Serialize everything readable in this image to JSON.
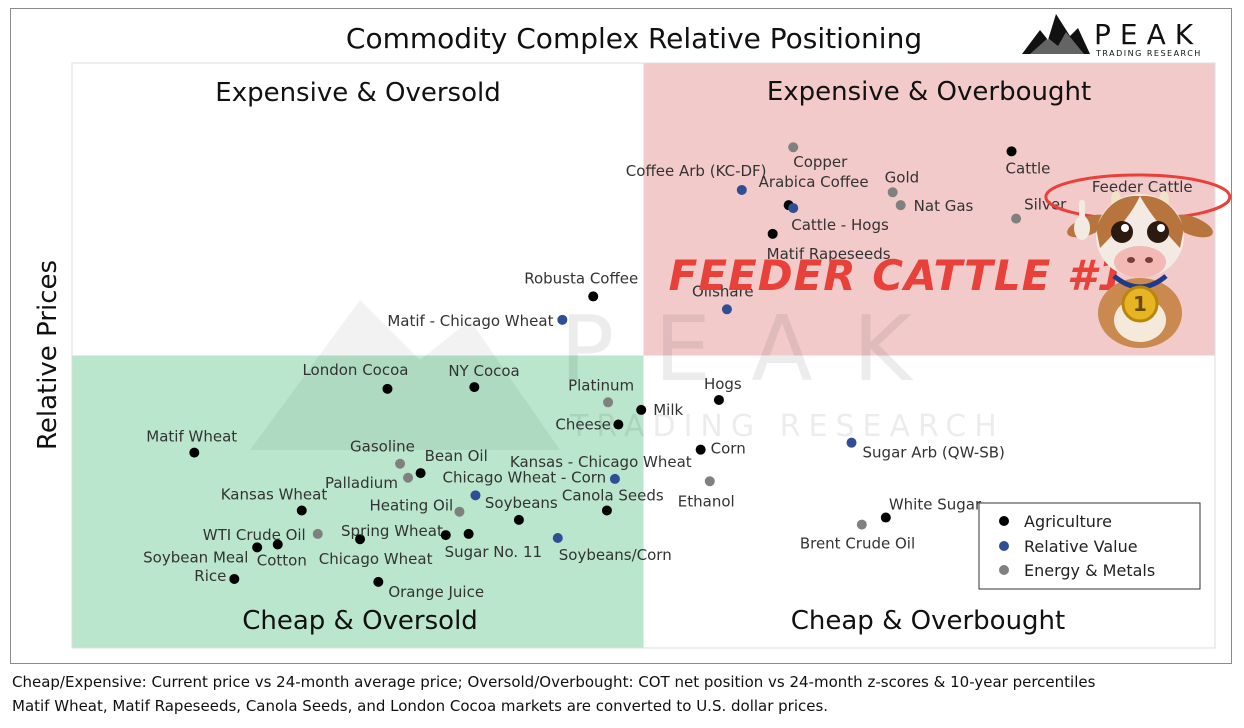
{
  "chart_data": {
    "type": "scatter",
    "title": "Commodity Complex Relative Positioning",
    "ylabel": "Relative Prices",
    "xlabel": "",
    "xlim": [
      0,
      100
    ],
    "ylim": [
      0,
      100
    ],
    "quadrants": {
      "top_left": "Expensive & Oversold",
      "top_right": "Expensive & Overbought",
      "bottom_left": "Cheap & Oversold",
      "bottom_right": "Cheap & Overbought"
    },
    "quadrant_colors": {
      "top_right": "#f2caca",
      "bottom_left": "#b9e6cd"
    },
    "series_colors": {
      "Agriculture": "#000000",
      "Relative Value": "#2e4f96",
      "Energy & Metals": "#808080"
    },
    "legend": {
      "position": "bottom-right",
      "entries": [
        "Agriculture",
        "Relative Value",
        "Energy & Metals"
      ]
    },
    "points": [
      {
        "name": "Copper",
        "x": 63.1,
        "y": 85.6,
        "series": "Energy & Metals"
      },
      {
        "name": "Cattle",
        "x": 82.2,
        "y": 84.9,
        "series": "Agriculture"
      },
      {
        "name": "Coffee Arb (KC-DF)",
        "x": 58.6,
        "y": 78.3,
        "series": "Relative Value"
      },
      {
        "name": "Gold",
        "x": 71.8,
        "y": 77.9,
        "series": "Energy & Metals"
      },
      {
        "name": "Arabica Coffee",
        "x": 62.7,
        "y": 75.7,
        "series": "Agriculture"
      },
      {
        "name": "Feeder Cattle",
        "x": 91.5,
        "y": 75.9,
        "series": "Agriculture"
      },
      {
        "name": "Cattle - Hogs",
        "x": 63.1,
        "y": 75.2,
        "series": "Relative Value"
      },
      {
        "name": "Nat Gas",
        "x": 72.5,
        "y": 75.7,
        "series": "Energy & Metals"
      },
      {
        "name": "Silver",
        "x": 82.6,
        "y": 73.4,
        "series": "Energy & Metals"
      },
      {
        "name": "Matif Rapeseeds",
        "x": 61.3,
        "y": 70.8,
        "series": "Agriculture"
      },
      {
        "name": "Robusta Coffee",
        "x": 45.6,
        "y": 60.1,
        "series": "Agriculture"
      },
      {
        "name": "Matif - Chicago Wheat",
        "x": 42.9,
        "y": 56.1,
        "series": "Relative Value"
      },
      {
        "name": "Oilshare",
        "x": 57.3,
        "y": 57.9,
        "series": "Relative Value"
      },
      {
        "name": "London Cocoa",
        "x": 27.6,
        "y": 44.3,
        "series": "Agriculture"
      },
      {
        "name": "NY Cocoa",
        "x": 35.2,
        "y": 44.6,
        "series": "Agriculture"
      },
      {
        "name": "Platinum",
        "x": 46.9,
        "y": 42.0,
        "series": "Energy & Metals"
      },
      {
        "name": "Milk",
        "x": 49.8,
        "y": 40.7,
        "series": "Agriculture"
      },
      {
        "name": "Hogs",
        "x": 56.6,
        "y": 42.4,
        "series": "Agriculture"
      },
      {
        "name": "Cheese",
        "x": 47.8,
        "y": 38.2,
        "series": "Agriculture"
      },
      {
        "name": "Matif Wheat",
        "x": 10.7,
        "y": 33.4,
        "series": "Agriculture"
      },
      {
        "name": "Corn",
        "x": 55.0,
        "y": 33.9,
        "series": "Agriculture"
      },
      {
        "name": "Sugar Arb (QW-SB)",
        "x": 68.2,
        "y": 35.1,
        "series": "Relative Value"
      },
      {
        "name": "Gasoline",
        "x": 28.7,
        "y": 31.5,
        "series": "Energy & Metals"
      },
      {
        "name": "Bean Oil",
        "x": 30.5,
        "y": 29.9,
        "series": "Agriculture"
      },
      {
        "name": "Palladium",
        "x": 29.4,
        "y": 29.1,
        "series": "Energy & Metals"
      },
      {
        "name": "Kansas - Chicago Wheat",
        "x": 47.5,
        "y": 28.9,
        "series": "Relative Value"
      },
      {
        "name": "Ethanol",
        "x": 55.8,
        "y": 28.5,
        "series": "Energy & Metals"
      },
      {
        "name": "Chicago Wheat - Corn",
        "x": 35.3,
        "y": 26.1,
        "series": "Relative Value"
      },
      {
        "name": "Heating Oil",
        "x": 33.9,
        "y": 23.3,
        "series": "Energy & Metals"
      },
      {
        "name": "Soybeans",
        "x": 39.1,
        "y": 21.9,
        "series": "Agriculture"
      },
      {
        "name": "Canola Seeds",
        "x": 46.8,
        "y": 23.5,
        "series": "Agriculture"
      },
      {
        "name": "White Sugar",
        "x": 71.2,
        "y": 22.3,
        "series": "Agriculture"
      },
      {
        "name": "Kansas Wheat",
        "x": 20.1,
        "y": 23.5,
        "series": "Agriculture"
      },
      {
        "name": "Brent Crude Oil",
        "x": 69.1,
        "y": 21.1,
        "series": "Energy & Metals"
      },
      {
        "name": "WTI Crude Oil",
        "x": 21.5,
        "y": 19.5,
        "series": "Energy & Metals"
      },
      {
        "name": "Spring Wheat",
        "x": 25.2,
        "y": 18.6,
        "series": "Agriculture"
      },
      {
        "name": "Chicago Wheat",
        "x": 32.7,
        "y": 19.3,
        "series": "Agriculture"
      },
      {
        "name": "Sugar No. 11",
        "x": 34.7,
        "y": 19.5,
        "series": "Agriculture"
      },
      {
        "name": "Soybeans/Corn",
        "x": 42.5,
        "y": 18.8,
        "series": "Relative Value"
      },
      {
        "name": "Soybean Meal",
        "x": 16.2,
        "y": 17.2,
        "series": "Agriculture"
      },
      {
        "name": "Cotton",
        "x": 18.0,
        "y": 17.7,
        "series": "Agriculture"
      },
      {
        "name": "Rice",
        "x": 14.2,
        "y": 11.8,
        "series": "Agriculture"
      },
      {
        "name": "Orange Juice",
        "x": 26.8,
        "y": 11.3,
        "series": "Agriculture"
      }
    ]
  },
  "callout": {
    "text": "FEEDER CATTLE #1",
    "highlighted": "Feeder Cattle",
    "color": "#e8413a",
    "mascot": "cartoon-calf-with-medal",
    "medal_text": "1"
  },
  "logo": {
    "name": "PEAK",
    "sub": "TRADING RESEARCH",
    "watermark_main": "PEAK",
    "watermark_sub": "TRADING RESEARCH"
  },
  "footnotes": [
    "Cheap/Expensive: Current price vs 24-month average price; Oversold/Overbought: COT net position vs 24-month z-scores & 10-year percentiles",
    "Matif Wheat, Matif Rapeseeds, Canola Seeds, and London Cocoa markets are converted to U.S. dollar prices."
  ]
}
